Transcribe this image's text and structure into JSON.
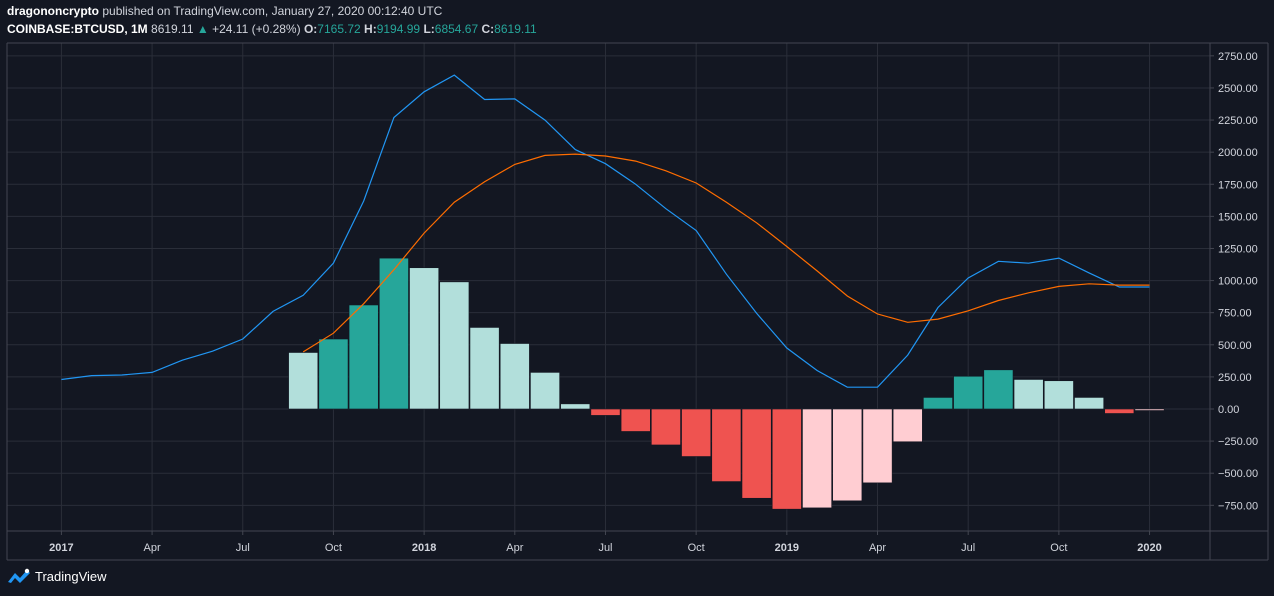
{
  "header": {
    "author": "dragononcrypto",
    "published_text": "published on TradingView.com, January 27, 2020 00:12:40 UTC",
    "symbol": "COINBASE:BTCUSD, 1M",
    "price": "8619.11",
    "change": "+24.11 (+0.28%)",
    "open_label": "O:",
    "open": "7165.72",
    "high_label": "H:",
    "high": "9194.99",
    "low_label": "L:",
    "low": "6854.67",
    "close_label": "C:",
    "close": "8619.11"
  },
  "brand": {
    "name": "TradingView"
  },
  "colors": {
    "background": "#131722",
    "grid": "#2a2e39",
    "macd_line": "#2196f3",
    "signal_line": "#ff6d00",
    "hist_up_strong": "#26a69a",
    "hist_up_weak": "#b2dfdb",
    "hist_down_strong": "#ef5350",
    "hist_down_weak": "#ffcdd2",
    "axis_text": "#d1d4dc"
  },
  "chart_data": {
    "type": "bar",
    "y_ticks": [
      "2750.00",
      "2500.00",
      "2250.00",
      "2000.00",
      "1750.00",
      "1500.00",
      "1250.00",
      "1000.00",
      "750.00",
      "500.00",
      "250.00",
      "0.00",
      "−250.00",
      "−500.00",
      "−750.00"
    ],
    "y_tick_values": [
      2750,
      2500,
      2250,
      2000,
      1750,
      1500,
      1250,
      1000,
      750,
      500,
      250,
      0,
      -250,
      -500,
      -750
    ],
    "x_ticks": [
      {
        "label": "2017",
        "month": 0,
        "bold": true
      },
      {
        "label": "Apr",
        "month": 3,
        "bold": false
      },
      {
        "label": "Jul",
        "month": 6,
        "bold": false
      },
      {
        "label": "Oct",
        "month": 9,
        "bold": false
      },
      {
        "label": "2018",
        "month": 12,
        "bold": true
      },
      {
        "label": "Apr",
        "month": 15,
        "bold": false
      },
      {
        "label": "Jul",
        "month": 18,
        "bold": false
      },
      {
        "label": "Oct",
        "month": 21,
        "bold": false
      },
      {
        "label": "2019",
        "month": 24,
        "bold": true
      },
      {
        "label": "Apr",
        "month": 27,
        "bold": false
      },
      {
        "label": "Jul",
        "month": 30,
        "bold": false
      },
      {
        "label": "Oct",
        "month": 33,
        "bold": false
      },
      {
        "label": "2020",
        "month": 36,
        "bold": true
      }
    ],
    "ylim": [
      -950,
      2850
    ],
    "xlim_months": [
      -1.8,
      38.0
    ],
    "series": [
      {
        "kind": "line",
        "color_key": "macd_line",
        "start_month": 0,
        "values": [
          230,
          260,
          265,
          285,
          380,
          450,
          545,
          760,
          885,
          1135,
          1620,
          2270,
          2470,
          2600,
          2410,
          2415,
          2250,
          2020,
          1910,
          1750,
          1560,
          1390,
          1050,
          745,
          475,
          300,
          170,
          170,
          420,
          790,
          1020,
          1150,
          1135,
          1175,
          1060,
          950,
          950
        ]
      },
      {
        "kind": "line",
        "color_key": "signal_line",
        "start_month": 8,
        "values": [
          445,
          590,
          820,
          1085,
          1370,
          1610,
          1770,
          1905,
          1975,
          1985,
          1970,
          1930,
          1855,
          1760,
          1610,
          1450,
          1265,
          1075,
          880,
          740,
          675,
          700,
          765,
          845,
          905,
          955,
          975,
          965,
          965
        ]
      },
      {
        "kind": "histogram",
        "start_month": 8,
        "values": [
          440,
          545,
          810,
          1175,
          1100,
          990,
          635,
          510,
          285,
          40,
          -50,
          -175,
          -280,
          -370,
          -565,
          -695,
          -780,
          -770,
          -715,
          -575,
          -255,
          90,
          255,
          305,
          230,
          220,
          90,
          -35,
          -10
        ],
        "color_keys": [
          "hist_up_weak",
          "hist_up_strong",
          "hist_up_strong",
          "hist_up_strong",
          "hist_up_weak",
          "hist_up_weak",
          "hist_up_weak",
          "hist_up_weak",
          "hist_up_weak",
          "hist_up_weak",
          "hist_down_strong",
          "hist_down_strong",
          "hist_down_strong",
          "hist_down_strong",
          "hist_down_strong",
          "hist_down_strong",
          "hist_down_strong",
          "hist_down_weak",
          "hist_down_weak",
          "hist_down_weak",
          "hist_down_weak",
          "hist_up_strong",
          "hist_up_strong",
          "hist_up_strong",
          "hist_up_weak",
          "hist_up_weak",
          "hist_up_weak",
          "hist_down_strong",
          "hist_down_weak"
        ]
      }
    ]
  }
}
